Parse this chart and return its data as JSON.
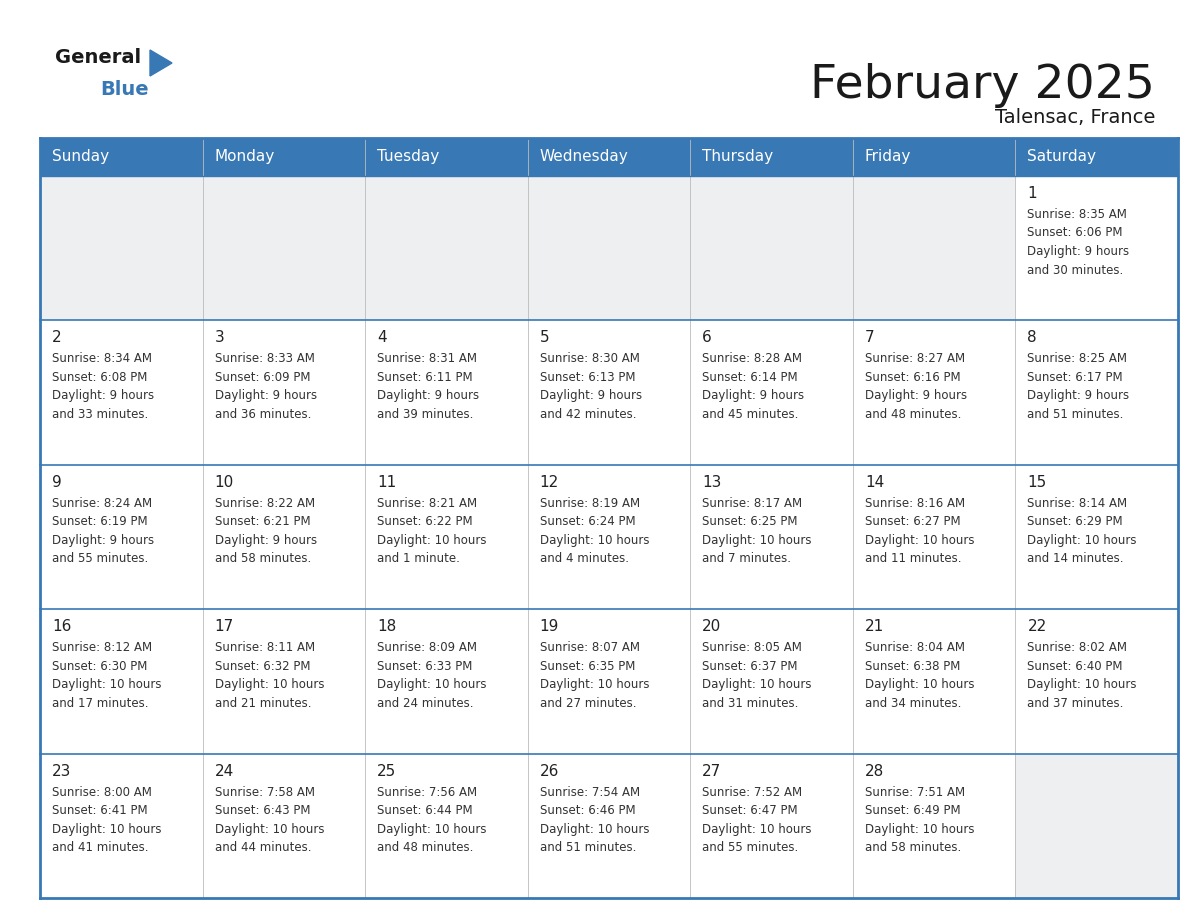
{
  "title": "February 2025",
  "subtitle": "Talensac, France",
  "header_color": "#3878b4",
  "header_text_color": "#ffffff",
  "row_sep_color": "#3878b4",
  "cell_bg_gray": "#eeeff1",
  "cell_bg_white": "#ffffff",
  "text_color": "#333333",
  "day_number_color": "#222222",
  "day_headers": [
    "Sunday",
    "Monday",
    "Tuesday",
    "Wednesday",
    "Thursday",
    "Friday",
    "Saturday"
  ],
  "calendar_data": [
    [
      null,
      null,
      null,
      null,
      null,
      null,
      {
        "day": "1",
        "sunrise": "8:35 AM",
        "sunset": "6:06 PM",
        "daylight1": "Daylight: 9 hours",
        "daylight2": "and 30 minutes."
      }
    ],
    [
      {
        "day": "2",
        "sunrise": "8:34 AM",
        "sunset": "6:08 PM",
        "daylight1": "Daylight: 9 hours",
        "daylight2": "and 33 minutes."
      },
      {
        "day": "3",
        "sunrise": "8:33 AM",
        "sunset": "6:09 PM",
        "daylight1": "Daylight: 9 hours",
        "daylight2": "and 36 minutes."
      },
      {
        "day": "4",
        "sunrise": "8:31 AM",
        "sunset": "6:11 PM",
        "daylight1": "Daylight: 9 hours",
        "daylight2": "and 39 minutes."
      },
      {
        "day": "5",
        "sunrise": "8:30 AM",
        "sunset": "6:13 PM",
        "daylight1": "Daylight: 9 hours",
        "daylight2": "and 42 minutes."
      },
      {
        "day": "6",
        "sunrise": "8:28 AM",
        "sunset": "6:14 PM",
        "daylight1": "Daylight: 9 hours",
        "daylight2": "and 45 minutes."
      },
      {
        "day": "7",
        "sunrise": "8:27 AM",
        "sunset": "6:16 PM",
        "daylight1": "Daylight: 9 hours",
        "daylight2": "and 48 minutes."
      },
      {
        "day": "8",
        "sunrise": "8:25 AM",
        "sunset": "6:17 PM",
        "daylight1": "Daylight: 9 hours",
        "daylight2": "and 51 minutes."
      }
    ],
    [
      {
        "day": "9",
        "sunrise": "8:24 AM",
        "sunset": "6:19 PM",
        "daylight1": "Daylight: 9 hours",
        "daylight2": "and 55 minutes."
      },
      {
        "day": "10",
        "sunrise": "8:22 AM",
        "sunset": "6:21 PM",
        "daylight1": "Daylight: 9 hours",
        "daylight2": "and 58 minutes."
      },
      {
        "day": "11",
        "sunrise": "8:21 AM",
        "sunset": "6:22 PM",
        "daylight1": "Daylight: 10 hours",
        "daylight2": "and 1 minute."
      },
      {
        "day": "12",
        "sunrise": "8:19 AM",
        "sunset": "6:24 PM",
        "daylight1": "Daylight: 10 hours",
        "daylight2": "and 4 minutes."
      },
      {
        "day": "13",
        "sunrise": "8:17 AM",
        "sunset": "6:25 PM",
        "daylight1": "Daylight: 10 hours",
        "daylight2": "and 7 minutes."
      },
      {
        "day": "14",
        "sunrise": "8:16 AM",
        "sunset": "6:27 PM",
        "daylight1": "Daylight: 10 hours",
        "daylight2": "and 11 minutes."
      },
      {
        "day": "15",
        "sunrise": "8:14 AM",
        "sunset": "6:29 PM",
        "daylight1": "Daylight: 10 hours",
        "daylight2": "and 14 minutes."
      }
    ],
    [
      {
        "day": "16",
        "sunrise": "8:12 AM",
        "sunset": "6:30 PM",
        "daylight1": "Daylight: 10 hours",
        "daylight2": "and 17 minutes."
      },
      {
        "day": "17",
        "sunrise": "8:11 AM",
        "sunset": "6:32 PM",
        "daylight1": "Daylight: 10 hours",
        "daylight2": "and 21 minutes."
      },
      {
        "day": "18",
        "sunrise": "8:09 AM",
        "sunset": "6:33 PM",
        "daylight1": "Daylight: 10 hours",
        "daylight2": "and 24 minutes."
      },
      {
        "day": "19",
        "sunrise": "8:07 AM",
        "sunset": "6:35 PM",
        "daylight1": "Daylight: 10 hours",
        "daylight2": "and 27 minutes."
      },
      {
        "day": "20",
        "sunrise": "8:05 AM",
        "sunset": "6:37 PM",
        "daylight1": "Daylight: 10 hours",
        "daylight2": "and 31 minutes."
      },
      {
        "day": "21",
        "sunrise": "8:04 AM",
        "sunset": "6:38 PM",
        "daylight1": "Daylight: 10 hours",
        "daylight2": "and 34 minutes."
      },
      {
        "day": "22",
        "sunrise": "8:02 AM",
        "sunset": "6:40 PM",
        "daylight1": "Daylight: 10 hours",
        "daylight2": "and 37 minutes."
      }
    ],
    [
      {
        "day": "23",
        "sunrise": "8:00 AM",
        "sunset": "6:41 PM",
        "daylight1": "Daylight: 10 hours",
        "daylight2": "and 41 minutes."
      },
      {
        "day": "24",
        "sunrise": "7:58 AM",
        "sunset": "6:43 PM",
        "daylight1": "Daylight: 10 hours",
        "daylight2": "and 44 minutes."
      },
      {
        "day": "25",
        "sunrise": "7:56 AM",
        "sunset": "6:44 PM",
        "daylight1": "Daylight: 10 hours",
        "daylight2": "and 48 minutes."
      },
      {
        "day": "26",
        "sunrise": "7:54 AM",
        "sunset": "6:46 PM",
        "daylight1": "Daylight: 10 hours",
        "daylight2": "and 51 minutes."
      },
      {
        "day": "27",
        "sunrise": "7:52 AM",
        "sunset": "6:47 PM",
        "daylight1": "Daylight: 10 hours",
        "daylight2": "and 55 minutes."
      },
      {
        "day": "28",
        "sunrise": "7:51 AM",
        "sunset": "6:49 PM",
        "daylight1": "Daylight: 10 hours",
        "daylight2": "and 58 minutes."
      },
      null
    ]
  ],
  "logo_general_color": "#1a1a1a",
  "logo_blue_color": "#3878b4",
  "logo_triangle_color": "#3878b4"
}
